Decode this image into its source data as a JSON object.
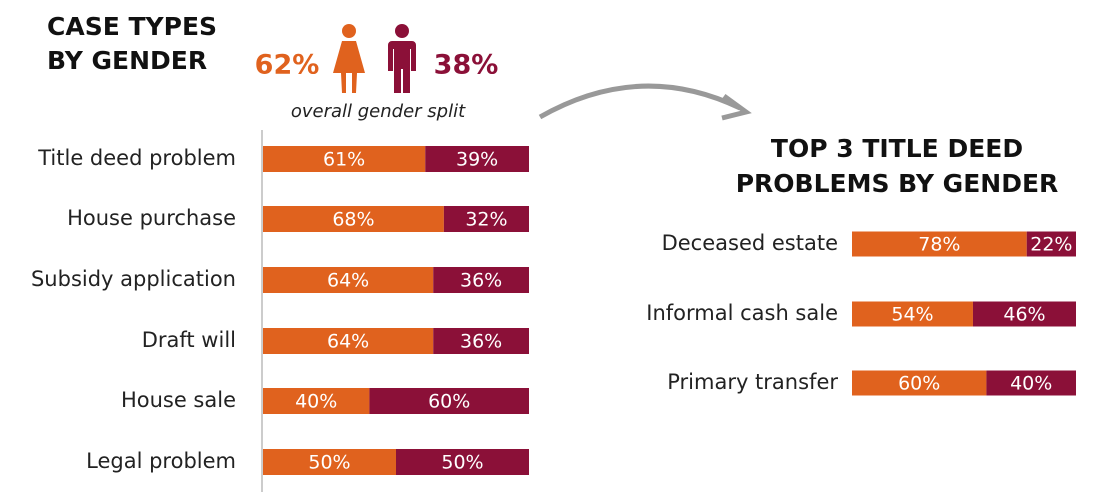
{
  "chart_data": [
    {
      "type": "stacked_bar_100",
      "title": [
        "CASE TYPES",
        "BY GENDER"
      ],
      "overall": {
        "values": [
          62,
          38
        ],
        "value_labels": [
          "62%",
          "38%"
        ],
        "label": "overall gender split"
      },
      "categories": [
        "Title deed problem",
        "House purchase",
        "Subsidy application",
        "Draft will",
        "House sale",
        "Legal problem"
      ],
      "series": [
        {
          "color": "#e0621e",
          "values": [
            61,
            68,
            64,
            64,
            40,
            50
          ],
          "value_labels": [
            "61%",
            "68%",
            "64%",
            "64%",
            "40%",
            "50%"
          ]
        },
        {
          "color": "#8b1038",
          "values": [
            39,
            32,
            36,
            36,
            60,
            50
          ],
          "value_labels": [
            "39%",
            "32%",
            "36%",
            "36%",
            "60%",
            "50%"
          ]
        }
      ],
      "xlim": [
        0,
        100
      ]
    },
    {
      "type": "stacked_bar_100",
      "title": [
        "TOP 3 TITLE DEED",
        "PROBLEMS BY GENDER"
      ],
      "categories": [
        "Deceased estate",
        "Informal cash sale",
        "Primary transfer"
      ],
      "series": [
        {
          "color": "#e0621e",
          "values": [
            78,
            54,
            60
          ],
          "value_labels": [
            "78%",
            "54%",
            "60%"
          ]
        },
        {
          "color": "#8b1038",
          "values": [
            22,
            46,
            40
          ],
          "value_labels": [
            "22%",
            "46%",
            "40%"
          ]
        }
      ],
      "xlim": [
        0,
        100
      ]
    }
  ]
}
